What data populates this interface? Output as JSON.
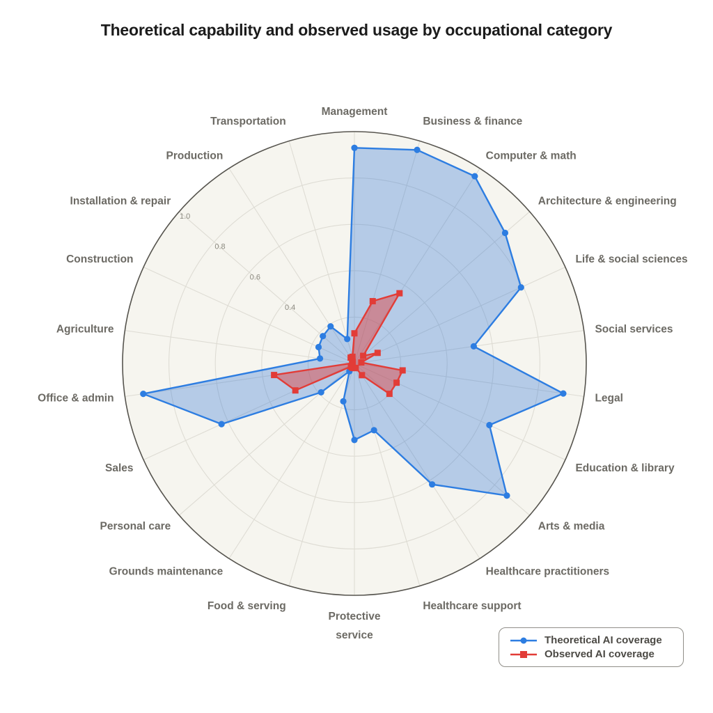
{
  "title": "Theoretical capability and observed usage by occupational category",
  "chart_data": {
    "type": "radar",
    "title": "Theoretical capability and observed usage by occupational category",
    "categories": [
      "Management",
      "Business & finance",
      "Computer & math",
      "Architecture & engineering",
      "Life & social sciences",
      "Social services",
      "Legal",
      "Education & library",
      "Arts & media",
      "Healthcare practitioners",
      "Healthcare support",
      "Protective service",
      "Food & serving",
      "Grounds maintenance",
      "Personal care",
      "Sales",
      "Office & admin",
      "Agriculture",
      "Construction",
      "Installation & repair",
      "Production",
      "Transportation"
    ],
    "series": [
      {
        "name": "Theoretical AI coverage",
        "marker": "circle",
        "color": "#2d7de1",
        "fill": "rgba(45,115,216,0.32)",
        "values": [
          0.93,
          0.96,
          0.96,
          0.86,
          0.79,
          0.52,
          0.91,
          0.64,
          0.87,
          0.62,
          0.3,
          0.33,
          0.17,
          0.04,
          0.19,
          0.63,
          0.92,
          0.15,
          0.17,
          0.18,
          0.19,
          0.11
        ]
      },
      {
        "name": "Observed AI coverage",
        "marker": "square",
        "color": "#e23c37",
        "fill": "rgba(226,60,55,0.45)",
        "values": [
          0.13,
          0.28,
          0.36,
          0.05,
          0.11,
          0.03,
          0.21,
          0.2,
          0.2,
          0.06,
          0.02,
          0.02,
          0.02,
          0.02,
          0.02,
          0.28,
          0.35,
          0.01,
          0.01,
          0.01,
          0.03,
          0.03
        ]
      }
    ],
    "radial_tick_labels": [
      "0.4",
      "0.6",
      "0.8",
      "1.0"
    ],
    "radial_tick_values": [
      0.4,
      0.6,
      0.8,
      1.0
    ],
    "ring_values": [
      0.2,
      0.4,
      0.6,
      0.8,
      1.0
    ],
    "rmax": 1.0,
    "start_angle_deg": 90,
    "direction": "clockwise",
    "grid": true,
    "legend_position": "bottom-right",
    "two_line_labels": [
      "Protective service"
    ]
  },
  "legend": {
    "items": [
      {
        "label": "Theoretical AI coverage"
      },
      {
        "label": "Observed AI coverage"
      }
    ]
  },
  "colors": {
    "page_background": "#ffffff",
    "polar_background": "#f6f5ef",
    "grid_line": "#dedcd4",
    "axis_outline": "#56544e",
    "category_label": "#6c6a64",
    "tick_label": "#8b897f",
    "title_text": "#1b1b1b",
    "series_blue": "#2d7de1",
    "series_red": "#e23c37",
    "legend_border": "#908e88",
    "legend_text": "#4c4a45"
  }
}
